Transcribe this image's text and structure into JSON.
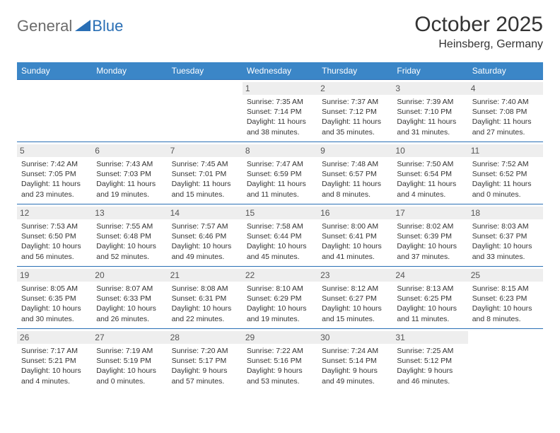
{
  "logo": {
    "general": "General",
    "blue": "Blue"
  },
  "header": {
    "month_title": "October 2025",
    "location": "Heinsberg, Germany"
  },
  "style": {
    "page_bg": "#ffffff",
    "header_bg": "#3b86c7",
    "header_text": "#ffffff",
    "rule_color": "#2a6fb5",
    "daynum_bg": "#eeeeee",
    "text_color": "#333333",
    "logo_grey": "#6b6b6b",
    "logo_blue": "#2a6fb5",
    "font_family": "Arial, Helvetica, sans-serif",
    "month_title_fontsize": 30,
    "location_fontsize": 16,
    "dow_fontsize": 12,
    "daynum_fontsize": 12,
    "body_fontsize": 10.5
  },
  "days_of_week": [
    "Sunday",
    "Monday",
    "Tuesday",
    "Wednesday",
    "Thursday",
    "Friday",
    "Saturday"
  ],
  "weeks": [
    [
      null,
      null,
      null,
      {
        "n": "1",
        "sunrise": "7:35 AM",
        "sunset": "7:14 PM",
        "dl": "11 hours and 38 minutes."
      },
      {
        "n": "2",
        "sunrise": "7:37 AM",
        "sunset": "7:12 PM",
        "dl": "11 hours and 35 minutes."
      },
      {
        "n": "3",
        "sunrise": "7:39 AM",
        "sunset": "7:10 PM",
        "dl": "11 hours and 31 minutes."
      },
      {
        "n": "4",
        "sunrise": "7:40 AM",
        "sunset": "7:08 PM",
        "dl": "11 hours and 27 minutes."
      }
    ],
    [
      {
        "n": "5",
        "sunrise": "7:42 AM",
        "sunset": "7:05 PM",
        "dl": "11 hours and 23 minutes."
      },
      {
        "n": "6",
        "sunrise": "7:43 AM",
        "sunset": "7:03 PM",
        "dl": "11 hours and 19 minutes."
      },
      {
        "n": "7",
        "sunrise": "7:45 AM",
        "sunset": "7:01 PM",
        "dl": "11 hours and 15 minutes."
      },
      {
        "n": "8",
        "sunrise": "7:47 AM",
        "sunset": "6:59 PM",
        "dl": "11 hours and 11 minutes."
      },
      {
        "n": "9",
        "sunrise": "7:48 AM",
        "sunset": "6:57 PM",
        "dl": "11 hours and 8 minutes."
      },
      {
        "n": "10",
        "sunrise": "7:50 AM",
        "sunset": "6:54 PM",
        "dl": "11 hours and 4 minutes."
      },
      {
        "n": "11",
        "sunrise": "7:52 AM",
        "sunset": "6:52 PM",
        "dl": "11 hours and 0 minutes."
      }
    ],
    [
      {
        "n": "12",
        "sunrise": "7:53 AM",
        "sunset": "6:50 PM",
        "dl": "10 hours and 56 minutes."
      },
      {
        "n": "13",
        "sunrise": "7:55 AM",
        "sunset": "6:48 PM",
        "dl": "10 hours and 52 minutes."
      },
      {
        "n": "14",
        "sunrise": "7:57 AM",
        "sunset": "6:46 PM",
        "dl": "10 hours and 49 minutes."
      },
      {
        "n": "15",
        "sunrise": "7:58 AM",
        "sunset": "6:44 PM",
        "dl": "10 hours and 45 minutes."
      },
      {
        "n": "16",
        "sunrise": "8:00 AM",
        "sunset": "6:41 PM",
        "dl": "10 hours and 41 minutes."
      },
      {
        "n": "17",
        "sunrise": "8:02 AM",
        "sunset": "6:39 PM",
        "dl": "10 hours and 37 minutes."
      },
      {
        "n": "18",
        "sunrise": "8:03 AM",
        "sunset": "6:37 PM",
        "dl": "10 hours and 33 minutes."
      }
    ],
    [
      {
        "n": "19",
        "sunrise": "8:05 AM",
        "sunset": "6:35 PM",
        "dl": "10 hours and 30 minutes."
      },
      {
        "n": "20",
        "sunrise": "8:07 AM",
        "sunset": "6:33 PM",
        "dl": "10 hours and 26 minutes."
      },
      {
        "n": "21",
        "sunrise": "8:08 AM",
        "sunset": "6:31 PM",
        "dl": "10 hours and 22 minutes."
      },
      {
        "n": "22",
        "sunrise": "8:10 AM",
        "sunset": "6:29 PM",
        "dl": "10 hours and 19 minutes."
      },
      {
        "n": "23",
        "sunrise": "8:12 AM",
        "sunset": "6:27 PM",
        "dl": "10 hours and 15 minutes."
      },
      {
        "n": "24",
        "sunrise": "8:13 AM",
        "sunset": "6:25 PM",
        "dl": "10 hours and 11 minutes."
      },
      {
        "n": "25",
        "sunrise": "8:15 AM",
        "sunset": "6:23 PM",
        "dl": "10 hours and 8 minutes."
      }
    ],
    [
      {
        "n": "26",
        "sunrise": "7:17 AM",
        "sunset": "5:21 PM",
        "dl": "10 hours and 4 minutes."
      },
      {
        "n": "27",
        "sunrise": "7:19 AM",
        "sunset": "5:19 PM",
        "dl": "10 hours and 0 minutes."
      },
      {
        "n": "28",
        "sunrise": "7:20 AM",
        "sunset": "5:17 PM",
        "dl": "9 hours and 57 minutes."
      },
      {
        "n": "29",
        "sunrise": "7:22 AM",
        "sunset": "5:16 PM",
        "dl": "9 hours and 53 minutes."
      },
      {
        "n": "30",
        "sunrise": "7:24 AM",
        "sunset": "5:14 PM",
        "dl": "9 hours and 49 minutes."
      },
      {
        "n": "31",
        "sunrise": "7:25 AM",
        "sunset": "5:12 PM",
        "dl": "9 hours and 46 minutes."
      },
      null
    ]
  ],
  "labels": {
    "sunrise": "Sunrise: ",
    "sunset": "Sunset: ",
    "daylight": "Daylight: "
  }
}
